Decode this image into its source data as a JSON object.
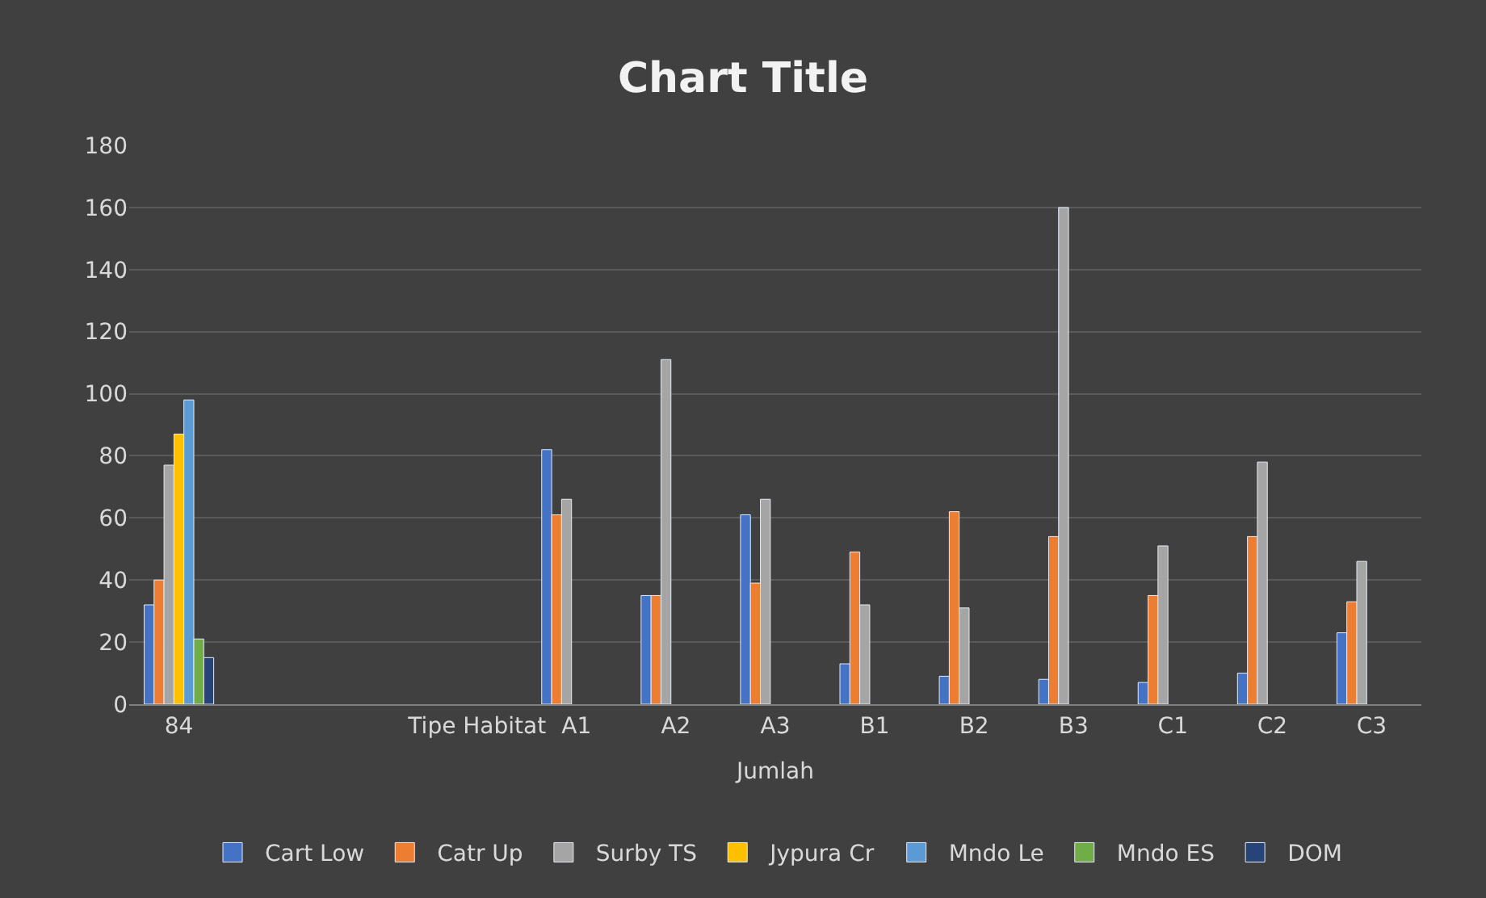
{
  "chart_data": {
    "type": "bar",
    "title": "Chart Title",
    "xlabel": "Jumlah",
    "categories": [
      "84",
      null,
      null,
      "Tipe Habitat",
      "A1",
      "A2",
      "A3",
      "B1",
      "B2",
      "B3",
      "C1",
      "C2",
      "C3"
    ],
    "series": [
      {
        "name": "Cart Low",
        "color": "#4472c4",
        "values": [
          32,
          null,
          null,
          null,
          82,
          35,
          61,
          13,
          9,
          8,
          7,
          10,
          23
        ]
      },
      {
        "name": "Catr Up",
        "color": "#ed7d31",
        "values": [
          40,
          null,
          null,
          null,
          61,
          35,
          39,
          49,
          62,
          54,
          35,
          54,
          33
        ]
      },
      {
        "name": "Surby TS",
        "color": "#a5a5a5",
        "values": [
          77,
          null,
          null,
          null,
          66,
          111,
          66,
          32,
          31,
          160,
          51,
          78,
          46
        ]
      },
      {
        "name": "Jypura Cr",
        "color": "#ffc000",
        "values": [
          87,
          null,
          null,
          null,
          null,
          null,
          null,
          null,
          null,
          null,
          null,
          null,
          null
        ]
      },
      {
        "name": "Mndo Le",
        "color": "#5b9bd5",
        "values": [
          98,
          null,
          null,
          null,
          null,
          null,
          null,
          null,
          null,
          null,
          null,
          null,
          null
        ]
      },
      {
        "name": "Mndo ES",
        "color": "#70ad47",
        "values": [
          21,
          null,
          null,
          null,
          null,
          null,
          null,
          null,
          null,
          null,
          null,
          null,
          null
        ]
      },
      {
        "name": "DOM",
        "color": "#264478",
        "values": [
          15,
          null,
          null,
          null,
          null,
          null,
          null,
          null,
          null,
          null,
          null,
          null,
          null
        ]
      }
    ],
    "ylim": [
      0,
      180
    ],
    "yticks": [
      0,
      20,
      40,
      60,
      80,
      100,
      120,
      140,
      160,
      180
    ],
    "grid": "y",
    "legend": "bottom"
  }
}
